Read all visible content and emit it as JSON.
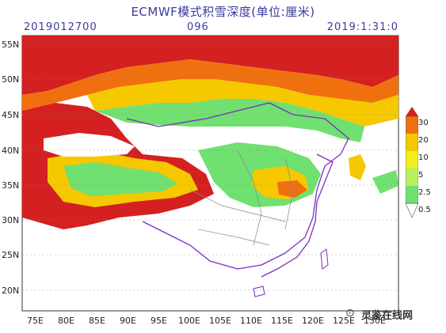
{
  "title": "ECMWF模式积雪深度(单位:厘米)",
  "header": {
    "init_time": "2019012700",
    "forecast_hour": "096",
    "valid_time": "2019:1:31:0"
  },
  "axes": {
    "lat_labels": [
      "55N",
      "50N",
      "45N",
      "40N",
      "35N",
      "30N",
      "25N",
      "20N"
    ],
    "lon_labels": [
      "75E",
      "80E",
      "85E",
      "90E",
      "95E",
      "100E",
      "105E",
      "110E",
      "115E",
      "120E",
      "125E",
      "130E"
    ]
  },
  "colorbar": {
    "levels": [
      "30",
      "20",
      "10",
      "5",
      "2.5",
      "0.5"
    ],
    "colors": [
      "#d42020",
      "#f07010",
      "#f5c800",
      "#f0f020",
      "#b8f060",
      "#70e070",
      "#ffffff"
    ]
  },
  "watermark": {
    "icon": "wechat-icon",
    "text": "灵鉴在线网"
  }
}
